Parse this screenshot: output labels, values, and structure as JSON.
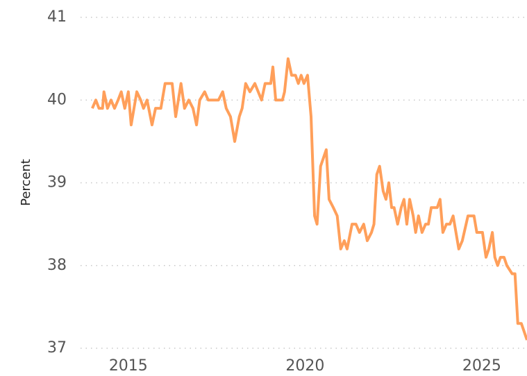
{
  "chart_data": {
    "type": "line",
    "y_label": "Percent",
    "x": [
      2013.98,
      2014.08,
      2014.17,
      2014.27,
      2014.31,
      2014.41,
      2014.51,
      2014.61,
      2014.71,
      2014.8,
      2014.9,
      2015.0,
      2015.08,
      2015.24,
      2015.35,
      2015.43,
      2015.53,
      2015.67,
      2015.77,
      2015.92,
      2016.04,
      2016.24,
      2016.34,
      2016.49,
      2016.59,
      2016.71,
      2016.83,
      2016.93,
      2017.02,
      2017.16,
      2017.26,
      2017.55,
      2017.67,
      2017.77,
      2017.89,
      2018.01,
      2018.14,
      2018.22,
      2018.32,
      2018.44,
      2018.58,
      2018.77,
      2018.87,
      2019.03,
      2019.09,
      2019.17,
      2019.36,
      2019.42,
      2019.52,
      2019.62,
      2019.73,
      2019.81,
      2019.89,
      2019.97,
      2020.07,
      2020.17,
      2020.27,
      2020.34,
      2020.44,
      2020.6,
      2020.68,
      2020.8,
      2020.91,
      2021.01,
      2021.11,
      2021.19,
      2021.33,
      2021.44,
      2021.54,
      2021.66,
      2021.76,
      2021.88,
      2021.95,
      2022.03,
      2022.11,
      2022.21,
      2022.29,
      2022.37,
      2022.45,
      2022.52,
      2022.62,
      2022.72,
      2022.8,
      2022.88,
      2022.96,
      2023.06,
      2023.13,
      2023.21,
      2023.31,
      2023.41,
      2023.49,
      2023.57,
      2023.74,
      2023.82,
      2023.9,
      2024.0,
      2024.1,
      2024.19,
      2024.35,
      2024.45,
      2024.61,
      2024.78,
      2024.86,
      2025.02,
      2025.12,
      2025.2,
      2025.3,
      2025.37,
      2025.45,
      2025.53,
      2025.63,
      2025.71,
      2025.86,
      2025.94,
      2026.02,
      2026.12,
      2026.28
    ],
    "series": [
      {
        "name": "Percent",
        "color": "#ff9f5a",
        "values": [
          39.9,
          40.0,
          39.9,
          39.9,
          40.1,
          39.9,
          40.0,
          39.9,
          40.0,
          40.1,
          39.9,
          40.1,
          39.7,
          40.1,
          40.0,
          39.9,
          40.0,
          39.7,
          39.9,
          39.9,
          40.2,
          40.2,
          39.8,
          40.2,
          39.9,
          40.0,
          39.9,
          39.7,
          40.0,
          40.1,
          40.0,
          40.0,
          40.1,
          39.9,
          39.8,
          39.5,
          39.8,
          39.9,
          40.2,
          40.1,
          40.2,
          40.0,
          40.2,
          40.2,
          40.4,
          40.0,
          40.0,
          40.1,
          40.5,
          40.3,
          40.3,
          40.2,
          40.3,
          40.2,
          40.3,
          39.8,
          38.6,
          38.5,
          39.2,
          39.4,
          38.8,
          38.7,
          38.6,
          38.2,
          38.3,
          38.2,
          38.5,
          38.5,
          38.4,
          38.5,
          38.3,
          38.4,
          38.5,
          39.1,
          39.2,
          38.9,
          38.8,
          39.0,
          38.7,
          38.7,
          38.5,
          38.7,
          38.8,
          38.5,
          38.8,
          38.6,
          38.4,
          38.6,
          38.4,
          38.5,
          38.5,
          38.7,
          38.7,
          38.8,
          38.4,
          38.5,
          38.5,
          38.6,
          38.2,
          38.3,
          38.6,
          38.6,
          38.4,
          38.4,
          38.1,
          38.2,
          38.4,
          38.1,
          38.0,
          38.1,
          38.1,
          38.0,
          37.9,
          37.9,
          37.3,
          37.3,
          37.1
        ]
      }
    ],
    "xlim": [
      2013.53,
      2026.28
    ],
    "xticks": [
      2015,
      2020,
      2025
    ],
    "ylim": [
      37,
      41
    ],
    "yticks": [
      37,
      38,
      39,
      40,
      41
    ],
    "grid": true
  }
}
